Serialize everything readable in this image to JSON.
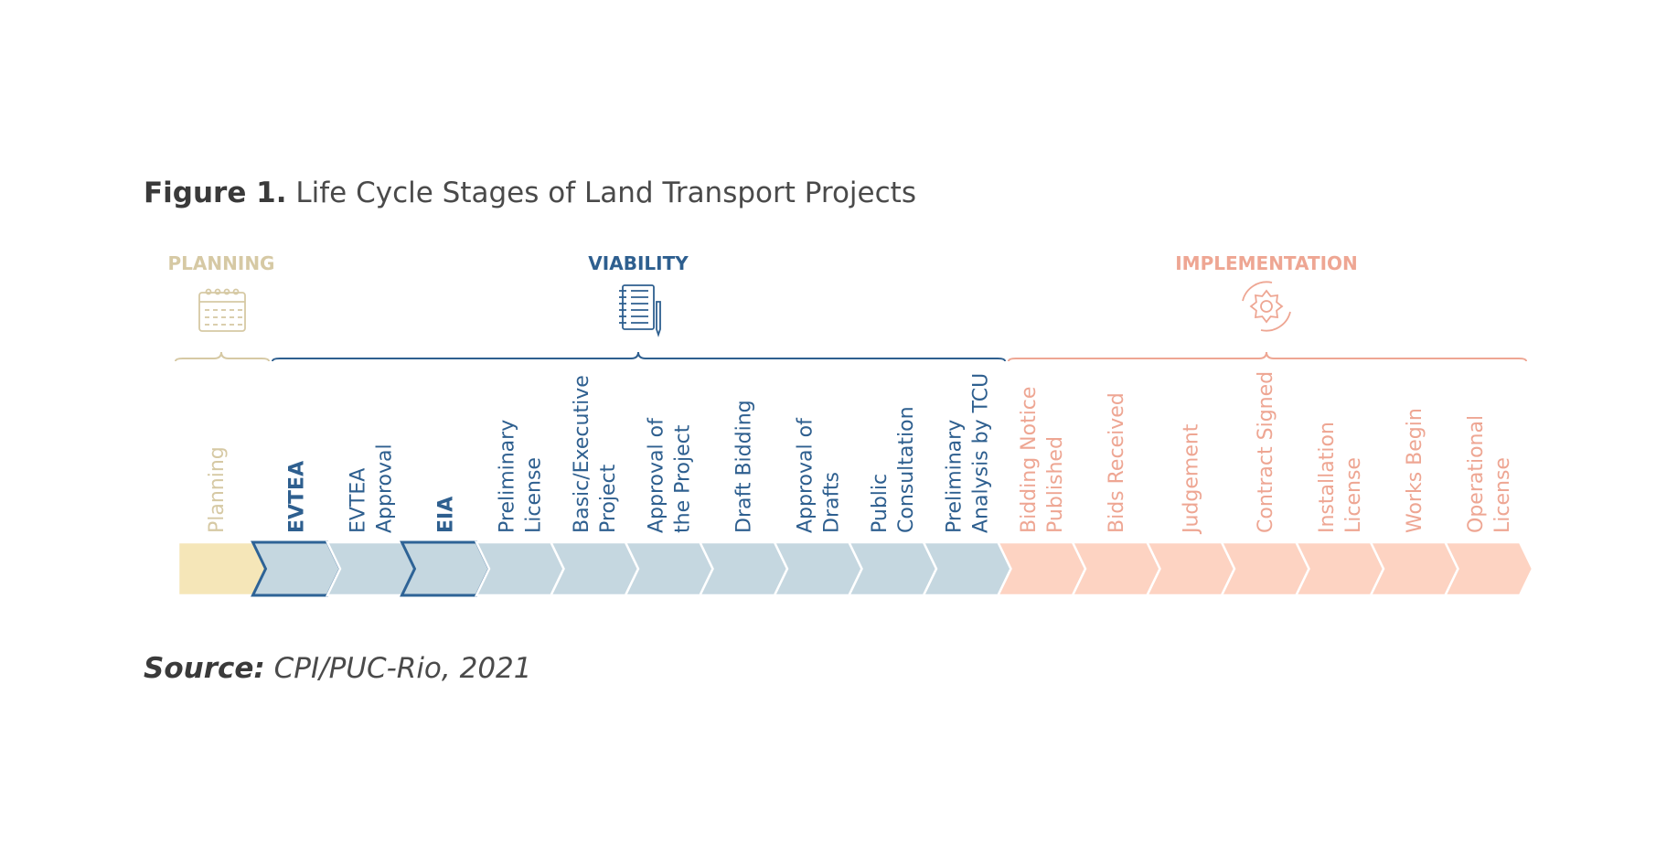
{
  "title": {
    "label": "Figure 1.",
    "text": "Life Cycle Stages of Land Transport Projects"
  },
  "source": {
    "label": "Source:",
    "text": "CPI/PUC-Rio, 2021"
  },
  "colors": {
    "planning_text": "#d6c9a4",
    "planning_fill": "#f5e6b8",
    "viability_text": "#2e5f8f",
    "viability_fill": "#c5d7e0",
    "viability_stroke": "#2e6396",
    "implementation_text": "#eea693",
    "implementation_fill": "#fdd3c2"
  },
  "phases": [
    {
      "key": "planning",
      "label": "PLANNING",
      "icon": "calendar-icon"
    },
    {
      "key": "viability",
      "label": "VIABILITY",
      "icon": "notebook-pen-icon"
    },
    {
      "key": "implementation",
      "label": "IMPLEMENTATION",
      "icon": "gear-cycle-icon"
    }
  ],
  "stages": [
    {
      "phase": "planning",
      "lines": [
        "Planning"
      ],
      "bold": false,
      "highlight": false
    },
    {
      "phase": "viability",
      "lines": [
        "EVTEA"
      ],
      "bold": true,
      "highlight": true
    },
    {
      "phase": "viability",
      "lines": [
        "EVTEA",
        "Approval"
      ],
      "bold": false,
      "highlight": false
    },
    {
      "phase": "viability",
      "lines": [
        "EIA"
      ],
      "bold": true,
      "highlight": true
    },
    {
      "phase": "viability",
      "lines": [
        "Preliminary",
        "License"
      ],
      "bold": false,
      "highlight": false
    },
    {
      "phase": "viability",
      "lines": [
        "Basic/Executive",
        "Project"
      ],
      "bold": false,
      "highlight": false
    },
    {
      "phase": "viability",
      "lines": [
        "Approval of",
        "the Project"
      ],
      "bold": false,
      "highlight": false
    },
    {
      "phase": "viability",
      "lines": [
        "Draft Bidding"
      ],
      "bold": false,
      "highlight": false
    },
    {
      "phase": "viability",
      "lines": [
        "Approval of",
        "Drafts"
      ],
      "bold": false,
      "highlight": false
    },
    {
      "phase": "viability",
      "lines": [
        "Public",
        "Consultation"
      ],
      "bold": false,
      "highlight": false
    },
    {
      "phase": "viability",
      "lines": [
        "Preliminary",
        "Analysis by TCU"
      ],
      "bold": false,
      "highlight": false
    },
    {
      "phase": "implementation",
      "lines": [
        "Bidding Notice",
        "Published"
      ],
      "bold": false,
      "highlight": false
    },
    {
      "phase": "implementation",
      "lines": [
        "Bids Received"
      ],
      "bold": false,
      "highlight": false
    },
    {
      "phase": "implementation",
      "lines": [
        "Judgement"
      ],
      "bold": false,
      "highlight": false
    },
    {
      "phase": "implementation",
      "lines": [
        "Contract Signed"
      ],
      "bold": false,
      "highlight": false
    },
    {
      "phase": "implementation",
      "lines": [
        "Installation",
        "License"
      ],
      "bold": false,
      "highlight": false
    },
    {
      "phase": "implementation",
      "lines": [
        "Works Begin"
      ],
      "bold": false,
      "highlight": false
    },
    {
      "phase": "implementation",
      "lines": [
        "Operational",
        "License"
      ],
      "bold": false,
      "highlight": false
    }
  ]
}
